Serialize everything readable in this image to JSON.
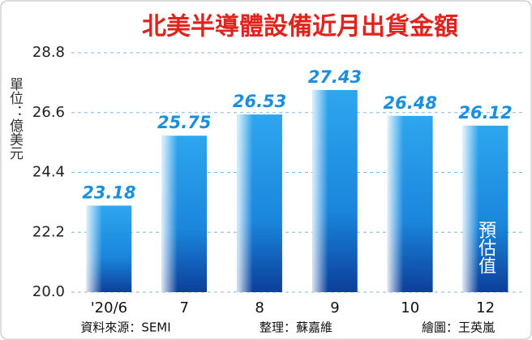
{
  "chart_data": {
    "type": "bar",
    "title": "北美半導體設備近月出貨金額",
    "y_label": "單位：億美元",
    "categories": [
      "'20/6",
      "7",
      "8",
      "9",
      "10",
      "12"
    ],
    "values": [
      23.18,
      25.75,
      26.53,
      27.43,
      26.48,
      26.12
    ],
    "color": "#1a7fd4",
    "ylim": [
      20,
      28.8
    ],
    "yticks": [
      {
        "value": 20,
        "label": "20.0"
      },
      22.2,
      24.4,
      26.6,
      28.8
    ],
    "grid": true,
    "annotation": "預估值",
    "footer": [
      "資料來源：SEMI",
      "整理：蘇嘉維",
      "繪圖：王英嵐"
    ]
  }
}
